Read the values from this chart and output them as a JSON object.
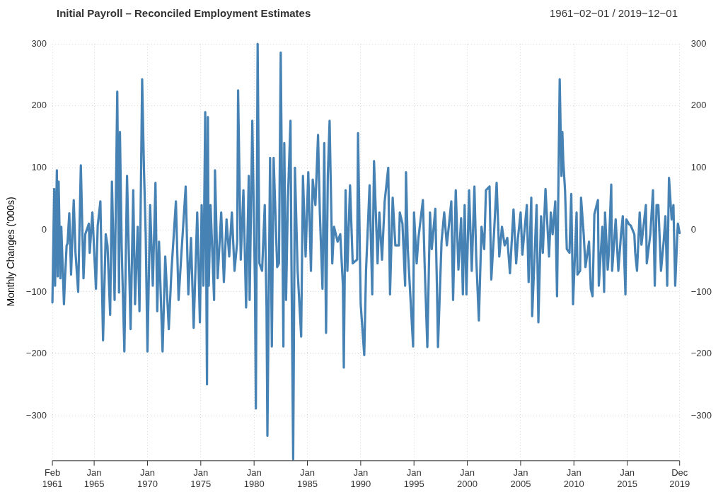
{
  "chart_data": {
    "type": "line",
    "title": "Initial Payroll – Reconciled Employment Estimates",
    "subtitle": "1961−02−01 / 2019−12−01",
    "ylabel": "Monthly Changes ('000s)",
    "x": [
      "1961-02",
      "1961-04",
      "1961-05",
      "1961-07",
      "1961-08",
      "1961-09",
      "1961-11",
      "1961-12",
      "1962-03",
      "1962-04",
      "1962-06",
      "1962-07",
      "1962-09",
      "1962-11",
      "1963-02",
      "1963-04",
      "1963-07",
      "1963-10",
      "1964-01",
      "1964-03",
      "1964-07",
      "1964-08",
      "1964-11",
      "1965-03",
      "1965-05",
      "1965-08",
      "1965-11",
      "1966-02",
      "1966-04",
      "1966-07",
      "1966-09",
      "1966-12",
      "1967-03",
      "1967-05",
      "1967-06",
      "1967-08",
      "1967-11",
      "1968-02",
      "1968-06",
      "1968-09",
      "1968-11",
      "1969-02",
      "1969-04",
      "1969-07",
      "1969-09",
      "1969-11",
      "1970-01",
      "1970-04",
      "1970-07",
      "1970-10",
      "1970-12",
      "1971-02",
      "1971-06",
      "1971-09",
      "1972-01",
      "1972-04",
      "1972-09",
      "1972-12",
      "1973-03",
      "1973-08",
      "1973-11",
      "1974-02",
      "1974-05",
      "1974-09",
      "1974-12",
      "1975-02",
      "1975-04",
      "1975-06",
      "1975-08",
      "1975-09",
      "1975-10",
      "1975-12",
      "1976-04",
      "1976-05",
      "1976-08",
      "1976-12",
      "1977-03",
      "1977-06",
      "1977-09",
      "1977-12",
      "1978-03",
      "1978-06",
      "1978-07",
      "1978-10",
      "1979-01",
      "1979-04",
      "1979-07",
      "1979-08",
      "1979-11",
      "1980-02",
      "1980-03",
      "1980-05",
      "1980-07",
      "1980-10",
      "1981-01",
      "1981-03",
      "1981-04",
      "1981-07",
      "1981-09",
      "1981-11",
      "1982-03",
      "1982-05",
      "1982-07",
      "1982-10",
      "1982-11",
      "1983-01",
      "1983-03",
      "1983-06",
      "1983-07",
      "1983-09",
      "1983-11",
      "1984-02",
      "1984-06",
      "1984-08",
      "1984-11",
      "1985-02",
      "1985-05",
      "1985-07",
      "1985-10",
      "1986-01",
      "1986-03",
      "1986-06",
      "1986-08",
      "1986-10",
      "1986-12",
      "1987-02",
      "1987-05",
      "1987-07",
      "1987-11",
      "1988-02",
      "1988-05",
      "1988-06",
      "1988-08",
      "1988-10",
      "1989-01",
      "1989-04",
      "1989-09",
      "1989-10",
      "1990-01",
      "1990-05",
      "1990-07",
      "1990-11",
      "1991-02",
      "1991-04",
      "1991-08",
      "1991-10",
      "1992-01",
      "1992-04",
      "1992-08",
      "1992-10",
      "1993-01",
      "1993-04",
      "1993-08",
      "1993-09",
      "1993-12",
      "1994-03",
      "1994-04",
      "1994-06",
      "1994-12",
      "1995-01",
      "1995-04",
      "1995-06",
      "1995-11",
      "1996-01",
      "1996-04",
      "1996-07",
      "1996-09",
      "1997-01",
      "1997-03",
      "1997-04",
      "1997-08",
      "1997-11",
      "1998-02",
      "1998-07",
      "1998-09",
      "1998-12",
      "1999-03",
      "1999-06",
      "1999-08",
      "1999-10",
      "1999-12",
      "2000-03",
      "2000-06",
      "2000-09",
      "2000-11",
      "2001-02",
      "2001-05",
      "2001-08",
      "2001-10",
      "2002-02",
      "2002-04",
      "2002-07",
      "2002-10",
      "2003-01",
      "2003-04",
      "2003-07",
      "2003-10",
      "2004-01",
      "2004-05",
      "2004-08",
      "2004-10",
      "2005-01",
      "2005-03",
      "2005-05",
      "2005-08",
      "2005-10",
      "2006-01",
      "2006-02",
      "2006-07",
      "2006-09",
      "2006-12",
      "2007-02",
      "2007-05",
      "2007-09",
      "2007-11",
      "2008-01",
      "2008-04",
      "2008-06",
      "2008-09",
      "2008-11",
      "2008-12",
      "2009-01",
      "2009-03",
      "2009-05",
      "2009-08",
      "2009-10",
      "2009-12",
      "2010-04",
      "2010-05",
      "2010-08",
      "2010-09",
      "2010-12",
      "2011-02",
      "2011-06",
      "2011-08",
      "2011-10",
      "2011-12",
      "2012-04",
      "2012-05",
      "2012-09",
      "2012-11",
      "2012-12",
      "2013-03",
      "2013-04",
      "2013-07",
      "2013-08",
      "2013-12",
      "2014-03",
      "2014-06",
      "2014-08",
      "2014-11",
      "2014-12",
      "2015-03",
      "2015-05",
      "2015-09",
      "2015-10",
      "2015-12",
      "2016-03",
      "2016-05",
      "2016-10",
      "2016-11",
      "2017-03",
      "2017-06",
      "2017-08",
      "2017-10",
      "2017-12",
      "2018-03",
      "2018-06",
      "2018-08",
      "2018-10",
      "2018-12",
      "2019-03",
      "2019-05",
      "2019-07",
      "2019-09",
      "2019-10",
      "2019-12"
    ],
    "series": [
      {
        "color": "#4682b4",
        "values": [
          -117,
          66,
          -90,
          96,
          -75,
          78,
          -78,
          5,
          -120,
          -84,
          -25,
          -22,
          27,
          -72,
          48,
          -37,
          -100,
          104,
          -78,
          -7,
          10,
          -37,
          28,
          -95,
          7,
          46,
          -178,
          -7,
          -25,
          -137,
          78,
          -113,
          223,
          -101,
          158,
          -30,
          -196,
          87,
          -160,
          64,
          -120,
          5,
          -131,
          243,
          101,
          -7,
          -196,
          40,
          -90,
          76,
          -131,
          -19,
          -196,
          -43,
          -160,
          -66,
          46,
          -113,
          -43,
          70,
          -104,
          -13,
          -158,
          28,
          -149,
          40,
          -90,
          190,
          -249,
          182,
          -90,
          40,
          -113,
          96,
          -78,
          28,
          -84,
          17,
          -43,
          28,
          -66,
          -19,
          225,
          -48,
          64,
          -125,
          87,
          -113,
          176,
          -90,
          -288,
          300,
          -54,
          -66,
          40,
          -123,
          -332,
          116,
          -188,
          116,
          -60,
          -54,
          286,
          -188,
          140,
          -113,
          46,
          176,
          -43,
          -370,
          100,
          -66,
          -172,
          87,
          -43,
          93,
          -66,
          81,
          40,
          153,
          28,
          -95,
          140,
          -166,
          87,
          176,
          -54,
          5,
          -19,
          -7,
          -90,
          -222,
          64,
          -66,
          72,
          -54,
          -48,
          156,
          -120,
          -202,
          -66,
          72,
          -104,
          111,
          -54,
          28,
          -48,
          46,
          100,
          -104,
          52,
          -25,
          -25,
          28,
          10,
          -90,
          93,
          -31,
          -188,
          28,
          -54,
          -13,
          48,
          -57,
          -189,
          28,
          -31,
          34,
          -104,
          -189,
          -19,
          28,
          -25,
          46,
          -113,
          64,
          -64,
          19,
          -104,
          40,
          -104,
          64,
          -66,
          70,
          -43,
          -146,
          5,
          -31,
          64,
          70,
          -80,
          -7,
          76,
          -43,
          5,
          -25,
          -13,
          -70,
          33,
          -54,
          -13,
          28,
          -40,
          -7,
          40,
          -84,
          52,
          -139,
          40,
          -149,
          22,
          -37,
          66,
          -43,
          28,
          -7,
          46,
          -107,
          243,
          87,
          158,
          111,
          64,
          -31,
          -37,
          58,
          -120,
          28,
          -72,
          -66,
          52,
          -7,
          -60,
          -19,
          -95,
          -107,
          25,
          48,
          -90,
          5,
          -100,
          28,
          -64,
          -43,
          73,
          -66,
          17,
          -66,
          -7,
          22,
          -104,
          17,
          9,
          7,
          -7,
          -37,
          -66,
          28,
          -24,
          40,
          -54,
          -7,
          64,
          -90,
          40,
          40,
          -66,
          -19,
          22,
          -90,
          84,
          17,
          40,
          -90,
          -19,
          10,
          -5
        ]
      }
    ],
    "xlim": [
      "1961-02",
      "2019-12"
    ],
    "xticks": [
      {
        "value": "1961-02",
        "label": "Feb 1961"
      },
      {
        "value": "1965-01",
        "label": "Jan 1965"
      },
      {
        "value": "1970-01",
        "label": "Jan 1970"
      },
      {
        "value": "1975-01",
        "label": "Jan 1975"
      },
      {
        "value": "1980-01",
        "label": "Jan 1980"
      },
      {
        "value": "1985-01",
        "label": "Jan 1985"
      },
      {
        "value": "1990-01",
        "label": "Jan 1990"
      },
      {
        "value": "1995-01",
        "label": "Jan 1995"
      },
      {
        "value": "2000-01",
        "label": "Jan 2000"
      },
      {
        "value": "2005-01",
        "label": "Jan 2005"
      },
      {
        "value": "2010-01",
        "label": "Jan 2010"
      },
      {
        "value": "2015-01",
        "label": "Jan 2015"
      },
      {
        "value": "2019-12",
        "label": "Dec 2019"
      }
    ],
    "ylim": [
      -370,
      300
    ],
    "yticks": [
      {
        "value": -300,
        "label": "−300"
      },
      {
        "value": -200,
        "label": "−200"
      },
      {
        "value": -100,
        "label": "−100"
      },
      0,
      100,
      200,
      300
    ],
    "y2lim": [
      -370,
      300
    ],
    "y2ticks": [
      {
        "value": -300,
        "label": "−300"
      },
      {
        "value": -200,
        "label": "−200"
      },
      {
        "value": -100,
        "label": "−100"
      },
      0,
      100,
      200,
      300
    ],
    "grid": true,
    "marker": "none",
    "line_style": "solid",
    "legend": false
  }
}
